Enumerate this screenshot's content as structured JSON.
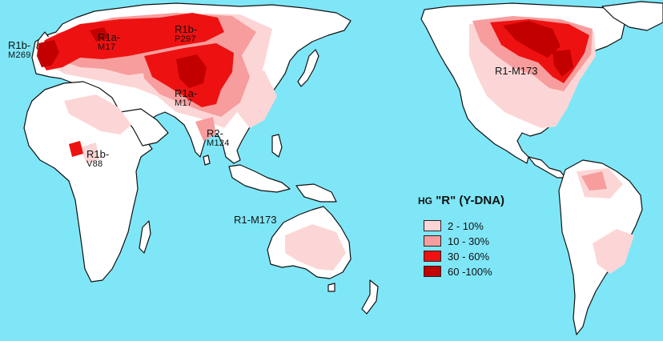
{
  "map": {
    "ocean_color": "#7fe6f7",
    "land_color": "#ffffff",
    "coast_color": "#111111"
  },
  "legend": {
    "hg_prefix": "HG",
    "title": "\"R\" (Y-DNA)",
    "items": [
      {
        "label": "2  - 10%",
        "color": "#fcd6d6"
      },
      {
        "label": "10 - 30%",
        "color": "#f79d9d"
      },
      {
        "label": "30 - 60%",
        "color": "#ee1111"
      },
      {
        "label": "60 -100%",
        "color": "#c20000"
      }
    ]
  },
  "labels": {
    "r1b_m269": {
      "line1": "R1b-",
      "line2": "M269"
    },
    "r1a_m17_europe": {
      "line1": "R1a-",
      "line2": "M17"
    },
    "r1b_p297": {
      "line1": "R1b-",
      "line2": "P297"
    },
    "r1a_m17_asia": {
      "line1": "R1a-",
      "line2": "M17"
    },
    "r2_m124": {
      "line1": "R2-",
      "line2": "M124"
    },
    "r1b_v88": {
      "line1": "R1b-",
      "line2": "V88"
    },
    "r1_m173_america": {
      "line1": "R1-M173"
    },
    "r1_m173_oceania": {
      "line1": "R1-M173"
    }
  }
}
